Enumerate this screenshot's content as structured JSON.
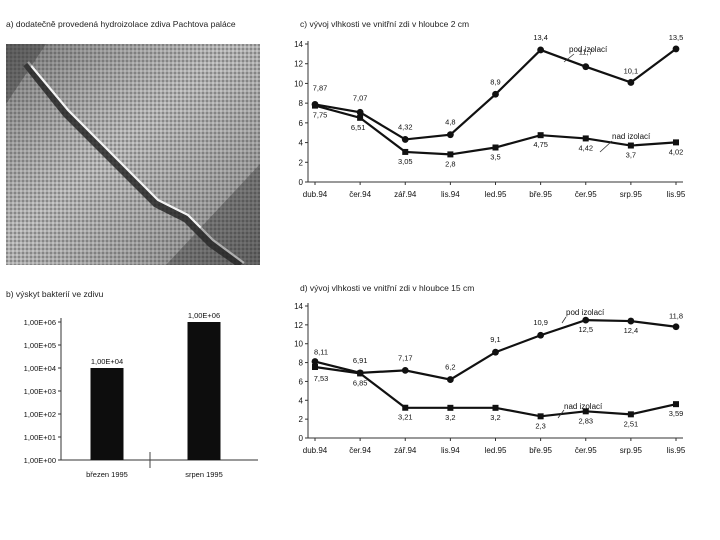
{
  "panels": {
    "a_title": "a) dodatečně provedená hydroizolace zdiva Pachtova paláce",
    "b_title": "b) výskyt bakterií ve zdivu",
    "c_title": "c) vývoj vlhkosti ve vnitřní zdi v hloubce 2 cm",
    "d_title": "d) vývoj vlhkosti ve vnitřní zdi v hloubce 15 cm"
  },
  "colors": {
    "ink": "#111111",
    "bar": "#0d0d0d",
    "axis": "#333333",
    "photo_light": "#c8c8c8",
    "photo_dark": "#4a4a4a"
  },
  "chart_data": [
    {
      "id": "bacteria",
      "type": "bar",
      "scale": "log10",
      "categories": [
        "březen 1995",
        "srpen 1995"
      ],
      "values": [
        10000,
        1000000
      ],
      "value_labels": [
        "1,00E+04",
        "1,00E+06"
      ],
      "ytick_labels": [
        "1,00E+00",
        "1,00E+01",
        "1,00E+02",
        "1,00E+03",
        "1,00E+04",
        "1,00E+05",
        "1,00E+06"
      ],
      "ylim": [
        1,
        1000000
      ]
    },
    {
      "id": "moisture-2cm",
      "type": "line",
      "categories": [
        "dub.94",
        "čer.94",
        "zář.94",
        "lis.94",
        "led.95",
        "bře.95",
        "čer.95",
        "srp.95",
        "lis.95"
      ],
      "ylim": [
        0,
        14
      ],
      "yticks": [
        "0",
        "2",
        "4",
        "6",
        "8",
        "10",
        "12",
        "14"
      ],
      "series": [
        {
          "name": "pod izolací",
          "marker": "circle",
          "values": [
            7.87,
            7.07,
            4.32,
            4.8,
            8.9,
            13.4,
            11.7,
            10.1,
            13.5
          ],
          "labels": [
            "7,87",
            "7,07",
            "4,32",
            "4,8",
            "8,9",
            "13,4",
            "11,7",
            "10,1",
            "13,5"
          ]
        },
        {
          "name": "nad izolací",
          "marker": "square",
          "values": [
            7.75,
            6.51,
            3.05,
            2.8,
            3.5,
            4.75,
            4.42,
            3.7,
            4.02
          ],
          "labels": [
            "7,75",
            "6,51",
            "3,05",
            "2,8",
            "3,5",
            "4,75",
            "4,42",
            "3,7",
            "4,02"
          ]
        }
      ]
    },
    {
      "id": "moisture-15cm",
      "type": "line",
      "categories": [
        "dub.94",
        "čer.94",
        "zář.94",
        "lis.94",
        "led.95",
        "bře.95",
        "čer.95",
        "srp.95",
        "lis.95"
      ],
      "ylim": [
        0,
        14
      ],
      "yticks": [
        "0",
        "2",
        "4",
        "6",
        "8",
        "10",
        "12",
        "14"
      ],
      "series": [
        {
          "name": "pod izolací",
          "marker": "circle",
          "values": [
            8.11,
            6.91,
            7.17,
            6.2,
            9.1,
            10.9,
            12.5,
            12.4,
            11.8
          ],
          "labels": [
            "8,11",
            "6,91",
            "7,17",
            "6,2",
            "9,1",
            "10,9",
            "12,5",
            "12,4",
            "11,8"
          ]
        },
        {
          "name": "nad izolací",
          "marker": "square",
          "values": [
            7.53,
            6.85,
            3.21,
            3.2,
            3.2,
            2.3,
            2.83,
            2.51,
            3.59
          ],
          "labels": [
            "7,53",
            "6,85",
            "3,21",
            "3,2",
            "3,2",
            "2,3",
            "2,83",
            "2,51",
            "3,59"
          ]
        }
      ]
    }
  ]
}
